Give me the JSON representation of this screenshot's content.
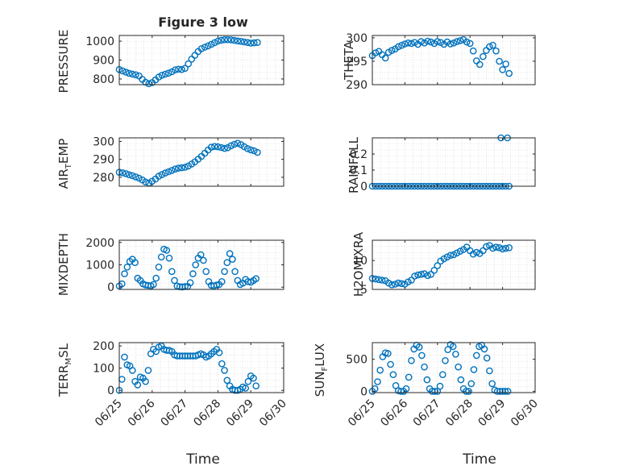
{
  "figure": {
    "title": "Figure 3 low",
    "xlabel": "Time",
    "x_ticks": [
      "06/25",
      "06/26",
      "06/27",
      "06/28",
      "06/29",
      "06/30"
    ],
    "marker_color": "#0072BD",
    "grid_color": "#d0d0d0"
  },
  "chart_data": [
    {
      "type": "scatter",
      "name": "pressure",
      "ylabel": "PRESSURE",
      "title": "Figure 3 low",
      "xlabel": "",
      "xlim": [
        0,
        5
      ],
      "ylim": [
        770,
        1030
      ],
      "yticks": [
        800,
        900,
        1000
      ],
      "ytick_labels": [
        "800",
        "900",
        "1000"
      ],
      "x": [
        0.0,
        0.1,
        0.2,
        0.3,
        0.4,
        0.5,
        0.6,
        0.7,
        0.8,
        0.9,
        1.0,
        1.1,
        1.2,
        1.3,
        1.4,
        1.5,
        1.6,
        1.7,
        1.8,
        1.9,
        2.0,
        2.1,
        2.2,
        2.3,
        2.4,
        2.5,
        2.6,
        2.7,
        2.8,
        2.9,
        3.0,
        3.1,
        3.2,
        3.3,
        3.4,
        3.5,
        3.6,
        3.7,
        3.8,
        3.9,
        4.0,
        4.1,
        4.2
      ],
      "y": [
        850,
        843,
        836,
        830,
        826,
        822,
        816,
        798,
        783,
        775,
        781,
        795,
        810,
        820,
        826,
        831,
        838,
        848,
        852,
        850,
        856,
        880,
        905,
        925,
        945,
        960,
        968,
        975,
        983,
        992,
        1000,
        1005,
        1008,
        1008,
        1007,
        1004,
        1001,
        999,
        996,
        993,
        990,
        991,
        993
      ]
    },
    {
      "type": "scatter",
      "name": "theta",
      "ylabel": "THETA",
      "title": "",
      "xlabel": "",
      "xlim": [
        0,
        5
      ],
      "ylim": [
        290,
        300.5
      ],
      "yticks": [
        290,
        295,
        300
      ],
      "ytick_labels": [
        "290",
        "295",
        "300"
      ],
      "x": [
        0.0,
        0.1,
        0.2,
        0.3,
        0.4,
        0.5,
        0.6,
        0.7,
        0.8,
        0.9,
        1.0,
        1.1,
        1.2,
        1.3,
        1.4,
        1.5,
        1.6,
        1.7,
        1.8,
        1.9,
        2.0,
        2.1,
        2.2,
        2.3,
        2.4,
        2.5,
        2.6,
        2.7,
        2.8,
        2.9,
        3.0,
        3.1,
        3.2,
        3.3,
        3.4,
        3.5,
        3.6,
        3.7,
        3.8,
        3.9,
        4.0,
        4.1,
        4.2
      ],
      "y": [
        296.2,
        296.8,
        297.1,
        296.4,
        295.7,
        296.9,
        297.3,
        297.6,
        298.1,
        298.4,
        298.7,
        298.9,
        298.8,
        299.0,
        298.6,
        299.2,
        298.9,
        299.3,
        299.1,
        298.8,
        299.2,
        299.0,
        298.6,
        299.1,
        298.7,
        298.9,
        299.2,
        299.4,
        299.6,
        299.1,
        298.8,
        297.2,
        295.1,
        294.3,
        296.0,
        297.3,
        298.1,
        298.4,
        297.2,
        295.0,
        293.2,
        294.4,
        292.4
      ]
    },
    {
      "type": "scatter",
      "name": "air_temp",
      "ylabel": "AIR_TEMP",
      "title": "",
      "xlabel": "",
      "xlim": [
        0,
        5
      ],
      "ylim": [
        275,
        302
      ],
      "yticks": [
        280,
        290,
        300
      ],
      "ytick_labels": [
        "280",
        "290",
        "300"
      ],
      "x": [
        0.0,
        0.1,
        0.2,
        0.3,
        0.4,
        0.5,
        0.6,
        0.7,
        0.8,
        0.9,
        1.0,
        1.1,
        1.2,
        1.3,
        1.4,
        1.5,
        1.6,
        1.7,
        1.8,
        1.9,
        2.0,
        2.1,
        2.2,
        2.3,
        2.4,
        2.5,
        2.6,
        2.7,
        2.8,
        2.9,
        3.0,
        3.1,
        3.2,
        3.3,
        3.4,
        3.5,
        3.6,
        3.7,
        3.8,
        3.9,
        4.0,
        4.1,
        4.2
      ],
      "y": [
        282.8,
        282.5,
        282.0,
        281.4,
        280.9,
        280.2,
        279.5,
        278.5,
        277.4,
        276.8,
        277.8,
        279.0,
        280.6,
        281.5,
        282.4,
        283.1,
        283.8,
        284.6,
        285.1,
        285.3,
        285.6,
        286.3,
        287.4,
        288.6,
        290.1,
        291.7,
        293.4,
        295.2,
        296.8,
        297.2,
        297.0,
        296.6,
        296.1,
        296.5,
        297.6,
        298.4,
        299.0,
        298.2,
        297.1,
        296.0,
        295.3,
        294.8,
        293.9
      ]
    },
    {
      "type": "scatter",
      "name": "rainfall",
      "ylabel": "RAINFALL",
      "title": "",
      "xlabel": "",
      "xlim": [
        0,
        5
      ],
      "ylim": [
        0,
        0.3
      ],
      "yticks": [
        0,
        0.1,
        0.2
      ],
      "ytick_labels": [
        "0",
        "0.1",
        "0.2"
      ],
      "x": [
        0.0,
        0.1,
        0.2,
        0.3,
        0.4,
        0.5,
        0.6,
        0.7,
        0.8,
        0.9,
        1.0,
        1.1,
        1.2,
        1.3,
        1.4,
        1.5,
        1.6,
        1.7,
        1.8,
        1.9,
        2.0,
        2.1,
        2.2,
        2.3,
        2.4,
        2.5,
        2.6,
        2.7,
        2.8,
        2.9,
        3.0,
        3.1,
        3.2,
        3.3,
        3.4,
        3.5,
        3.6,
        3.7,
        3.8,
        3.9,
        3.95,
        4.0,
        4.1,
        4.15,
        4.2
      ],
      "y": [
        0,
        0,
        0,
        0,
        0,
        0,
        0,
        0,
        0,
        0,
        0,
        0,
        0,
        0,
        0,
        0,
        0,
        0,
        0,
        0,
        0,
        0,
        0,
        0,
        0,
        0,
        0,
        0,
        0,
        0,
        0,
        0,
        0,
        0,
        0,
        0,
        0,
        0,
        0,
        0,
        0.3,
        0,
        0,
        0.3,
        0
      ]
    },
    {
      "type": "scatter",
      "name": "mixdepth",
      "ylabel": "MIXDEPTH",
      "title": "",
      "xlabel": "",
      "xlim": [
        0,
        5
      ],
      "ylim": [
        -100,
        2100
      ],
      "yticks": [
        0,
        1000,
        2000
      ],
      "ytick_labels": [
        "0",
        "1000",
        "2000"
      ],
      "x": [
        0.0,
        0.08,
        0.16,
        0.24,
        0.32,
        0.4,
        0.48,
        0.56,
        0.64,
        0.72,
        0.8,
        0.88,
        0.96,
        1.04,
        1.12,
        1.2,
        1.28,
        1.36,
        1.44,
        1.52,
        1.6,
        1.68,
        1.76,
        1.84,
        1.92,
        2.0,
        2.08,
        2.16,
        2.24,
        2.32,
        2.4,
        2.48,
        2.56,
        2.64,
        2.72,
        2.8,
        2.88,
        2.96,
        3.04,
        3.12,
        3.2,
        3.28,
        3.36,
        3.44,
        3.52,
        3.6,
        3.68,
        3.76,
        3.84,
        3.92,
        4.0,
        4.08,
        4.16
      ],
      "y": [
        50,
        150,
        600,
        900,
        1150,
        1250,
        1100,
        400,
        300,
        150,
        100,
        80,
        60,
        120,
        400,
        900,
        1350,
        1700,
        1650,
        1300,
        700,
        300,
        50,
        20,
        10,
        30,
        30,
        200,
        600,
        1000,
        1300,
        1450,
        1200,
        700,
        250,
        80,
        60,
        100,
        120,
        250,
        700,
        1100,
        1500,
        1250,
        700,
        300,
        120,
        180,
        350,
        250,
        220,
        300,
        380
      ]
    },
    {
      "type": "scatter",
      "name": "h2omixra",
      "ylabel": "H2OMIXRA",
      "title": "",
      "xlabel": "",
      "xlim": [
        0,
        5
      ],
      "ylim": [
        5,
        13.5
      ],
      "yticks": [
        5,
        10
      ],
      "ytick_labels": [
        "5",
        "10"
      ],
      "x": [
        0.0,
        0.1,
        0.2,
        0.3,
        0.4,
        0.5,
        0.6,
        0.7,
        0.8,
        0.9,
        1.0,
        1.1,
        1.2,
        1.3,
        1.4,
        1.5,
        1.6,
        1.7,
        1.8,
        1.9,
        2.0,
        2.1,
        2.2,
        2.3,
        2.4,
        2.5,
        2.6,
        2.7,
        2.8,
        2.9,
        3.0,
        3.1,
        3.2,
        3.3,
        3.4,
        3.5,
        3.6,
        3.7,
        3.8,
        3.9,
        4.0,
        4.1,
        4.2
      ],
      "y": [
        6.9,
        6.8,
        6.7,
        6.6,
        6.5,
        6.1,
        5.8,
        5.9,
        6.1,
        6.0,
        5.9,
        6.3,
        6.6,
        7.3,
        7.5,
        7.6,
        7.7,
        7.4,
        7.6,
        8.3,
        9.1,
        9.9,
        10.3,
        10.6,
        10.9,
        11.0,
        11.3,
        11.6,
        11.9,
        12.3,
        11.7,
        11.1,
        11.4,
        11.2,
        11.7,
        12.4,
        12.6,
        12.1,
        12.3,
        12.2,
        12.0,
        12.1,
        12.2
      ]
    },
    {
      "type": "scatter",
      "name": "terr_msl",
      "ylabel": "TERR_MSL",
      "title": "",
      "xlabel": "",
      "xlim": [
        0,
        5
      ],
      "ylim": [
        -10,
        215
      ],
      "yticks": [
        0,
        100,
        200
      ],
      "ytick_labels": [
        "0",
        "100",
        "200"
      ],
      "x": [
        0.0,
        0.08,
        0.16,
        0.24,
        0.32,
        0.4,
        0.48,
        0.56,
        0.64,
        0.72,
        0.8,
        0.88,
        0.96,
        1.04,
        1.12,
        1.2,
        1.28,
        1.36,
        1.44,
        1.52,
        1.6,
        1.68,
        1.76,
        1.84,
        1.92,
        2.0,
        2.08,
        2.16,
        2.24,
        2.32,
        2.4,
        2.48,
        2.56,
        2.64,
        2.72,
        2.8,
        2.88,
        2.96,
        3.04,
        3.12,
        3.2,
        3.28,
        3.36,
        3.44,
        3.52,
        3.6,
        3.68,
        3.76,
        3.84,
        3.92,
        4.0,
        4.08,
        4.16
      ],
      "y": [
        0,
        50,
        150,
        115,
        110,
        90,
        40,
        25,
        60,
        55,
        40,
        90,
        165,
        185,
        175,
        195,
        200,
        185,
        180,
        180,
        175,
        160,
        155,
        155,
        155,
        155,
        155,
        155,
        155,
        155,
        160,
        165,
        160,
        150,
        155,
        165,
        175,
        185,
        170,
        120,
        90,
        45,
        20,
        5,
        0,
        0,
        5,
        15,
        10,
        40,
        65,
        55,
        20
      ]
    },
    {
      "type": "scatter",
      "name": "sun_flux",
      "ylabel": "SUN_FLUX",
      "title": "",
      "xlabel": "",
      "xlim": [
        0,
        5
      ],
      "ylim": [
        -20,
        760
      ],
      "yticks": [
        0,
        500
      ],
      "ytick_labels": [
        "0",
        "500"
      ],
      "x": [
        0.0,
        0.08,
        0.16,
        0.24,
        0.32,
        0.4,
        0.48,
        0.56,
        0.64,
        0.72,
        0.8,
        0.88,
        0.96,
        1.04,
        1.12,
        1.2,
        1.28,
        1.36,
        1.44,
        1.52,
        1.6,
        1.68,
        1.76,
        1.84,
        1.92,
        2.0,
        2.08,
        2.16,
        2.24,
        2.32,
        2.4,
        2.48,
        2.56,
        2.64,
        2.72,
        2.8,
        2.88,
        2.96,
        3.04,
        3.12,
        3.2,
        3.28,
        3.36,
        3.44,
        3.52,
        3.6,
        3.68,
        3.76,
        3.84,
        3.92,
        4.0,
        4.08,
        4.16
      ],
      "y": [
        0,
        40,
        150,
        330,
        540,
        600,
        590,
        420,
        260,
        90,
        10,
        0,
        0,
        40,
        220,
        480,
        660,
        720,
        690,
        560,
        380,
        180,
        40,
        0,
        0,
        0,
        80,
        260,
        480,
        650,
        730,
        700,
        580,
        380,
        180,
        40,
        0,
        0,
        120,
        340,
        560,
        700,
        720,
        660,
        520,
        320,
        120,
        20,
        0,
        0,
        0,
        0,
        0
      ]
    }
  ]
}
